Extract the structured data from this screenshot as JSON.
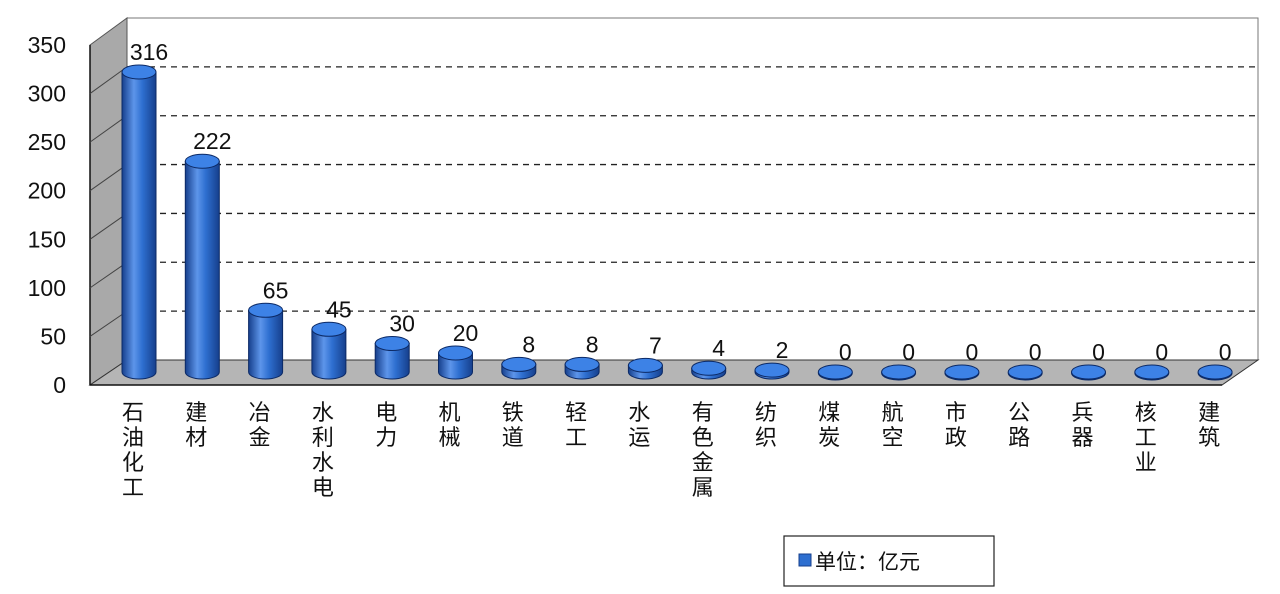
{
  "chart_data": {
    "type": "bar",
    "style": "3d-cylinder",
    "categories": [
      "石油化工",
      "建材",
      "冶金",
      "水利水电",
      "电力",
      "机械",
      "铁道",
      "轻工",
      "水运",
      "有色金属",
      "纺织",
      "煤炭",
      "航空",
      "市政",
      "公路",
      "兵器",
      "核工业",
      "建筑"
    ],
    "values": [
      316,
      222,
      65,
      45,
      30,
      20,
      8,
      8,
      7,
      4,
      2,
      0,
      0,
      0,
      0,
      0,
      0,
      0
    ],
    "data_labels": [
      "316",
      "222",
      "65",
      "45",
      "30",
      "20",
      "8",
      "8",
      "7",
      "4",
      "2",
      "0",
      "0",
      "0",
      "0",
      "0",
      "0",
      "0"
    ],
    "y_ticks": [
      "0",
      "50",
      "100",
      "150",
      "200",
      "250",
      "300",
      "350"
    ],
    "ylim": [
      0,
      350
    ],
    "grid": "dashed horizontal",
    "legend": {
      "label": "单位：亿元",
      "placement": "bottom-right"
    },
    "colors": {
      "bar": "#2e6fd0",
      "bar_dark": "#163f8c",
      "bar_light": "#6fa3ef",
      "wall": "#a9a9a9",
      "floor": "#b5b5b5"
    }
  }
}
